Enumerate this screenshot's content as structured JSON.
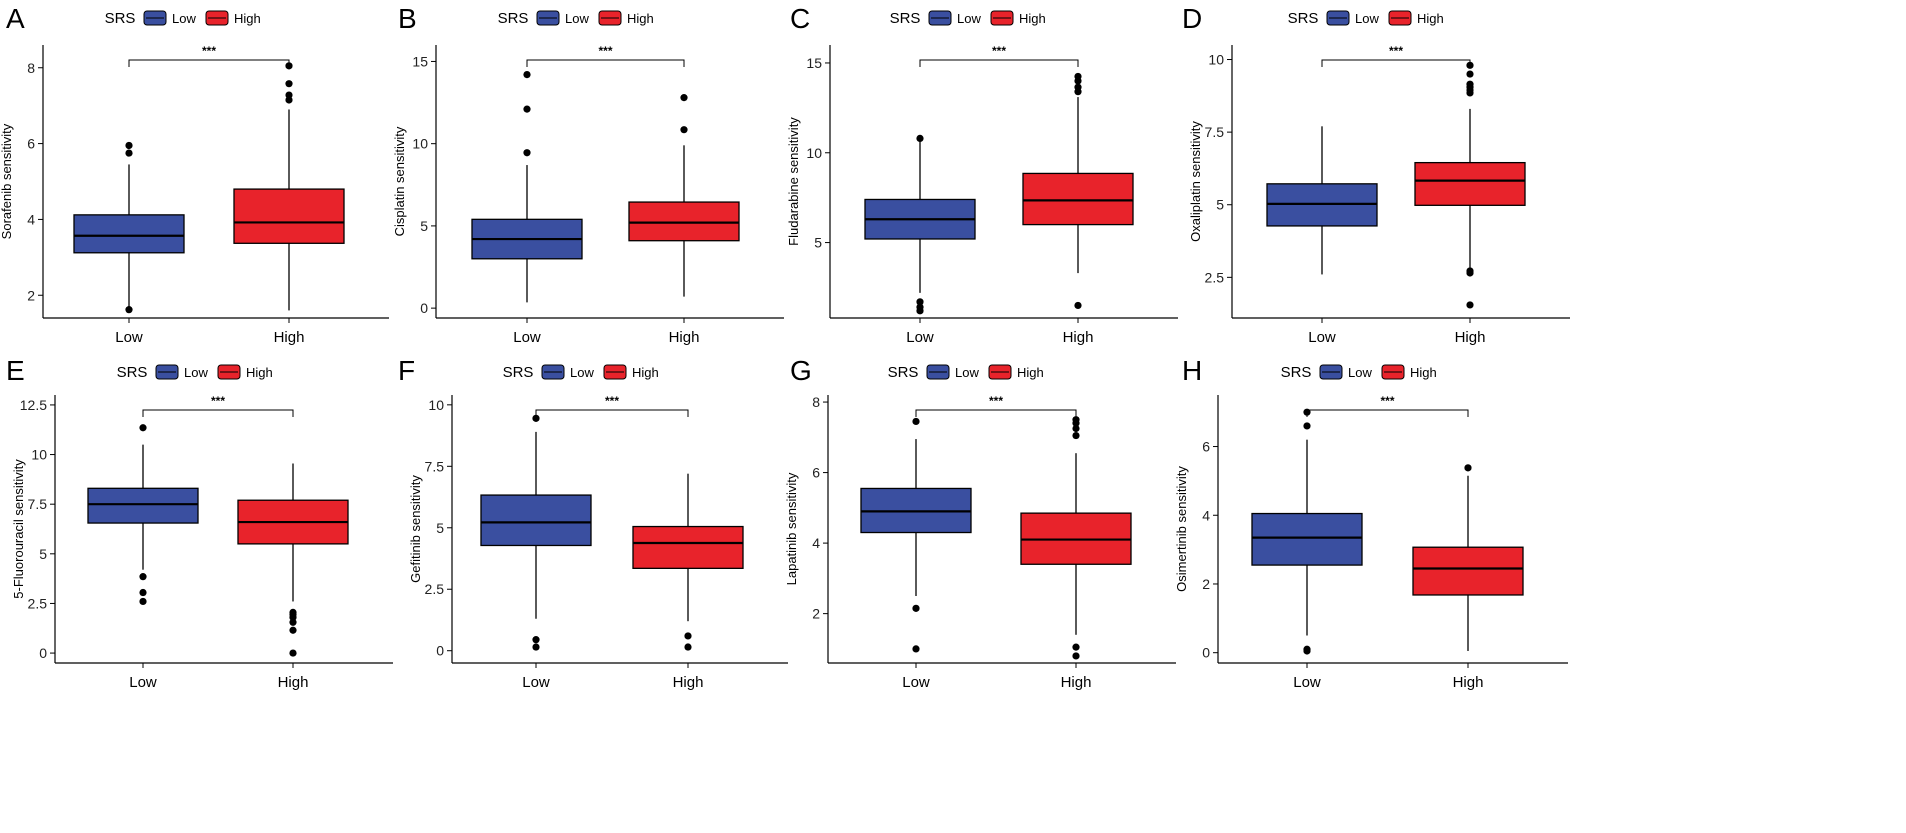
{
  "colors": {
    "low": "#3a4fa0",
    "high": "#e8232b",
    "axis": "#000000",
    "outlier": "#000000"
  },
  "legend": {
    "title": "SRS",
    "low": "Low",
    "high": "High"
  },
  "chart_data": [
    {
      "panel": "A",
      "type": "box",
      "ylabel": "Sorafenib sensitivity",
      "categories": [
        "Low",
        "High"
      ],
      "ylim": [
        1.4,
        8.6
      ],
      "yticks": [
        2,
        4,
        6,
        8
      ],
      "significance": "***",
      "boxes": [
        {
          "group": "Low",
          "whisker_low": 1.65,
          "q1": 3.12,
          "median": 3.57,
          "q3": 4.12,
          "whisker_high": 5.45,
          "outliers": [
            1.62,
            5.75,
            5.95
          ]
        },
        {
          "group": "High",
          "whisker_low": 1.6,
          "q1": 3.37,
          "median": 3.92,
          "q3": 4.8,
          "whisker_high": 6.9,
          "outliers": [
            7.15,
            7.28,
            7.58,
            8.05
          ]
        }
      ]
    },
    {
      "panel": "B",
      "type": "box",
      "ylabel": "Cisplatin sensitivity",
      "categories": [
        "Low",
        "High"
      ],
      "ylim": [
        -0.6,
        16.0
      ],
      "yticks": [
        0,
        5,
        10,
        15
      ],
      "significance": "***",
      "boxes": [
        {
          "group": "Low",
          "whisker_low": 0.35,
          "q1": 3.0,
          "median": 4.2,
          "q3": 5.4,
          "whisker_high": 8.7,
          "outliers": [
            9.45,
            12.1,
            14.2
          ]
        },
        {
          "group": "High",
          "whisker_low": 0.7,
          "q1": 4.1,
          "median": 5.2,
          "q3": 6.45,
          "whisker_high": 9.9,
          "outliers": [
            10.85,
            12.8
          ]
        }
      ]
    },
    {
      "panel": "C",
      "type": "box",
      "ylabel": "Fludarabine sensitivity",
      "categories": [
        "Low",
        "High"
      ],
      "ylim": [
        0.8,
        16.0
      ],
      "yticks": [
        5,
        10,
        15
      ],
      "significance": "***",
      "boxes": [
        {
          "group": "Low",
          "whisker_low": 2.2,
          "q1": 5.2,
          "median": 6.3,
          "q3": 7.4,
          "whisker_high": 10.8,
          "outliers": [
            1.2,
            1.4,
            1.7,
            10.8
          ]
        },
        {
          "group": "High",
          "whisker_low": 3.3,
          "q1": 6.0,
          "median": 7.35,
          "q3": 8.85,
          "whisker_high": 13.1,
          "outliers": [
            1.5,
            13.4,
            13.65,
            14.0,
            14.25
          ]
        }
      ]
    },
    {
      "panel": "D",
      "type": "box",
      "ylabel": "Oxaliplatin sensitivity",
      "categories": [
        "Low",
        "High"
      ],
      "ylim": [
        1.1,
        10.5
      ],
      "yticks": [
        2.5,
        5.0,
        7.5,
        10.0
      ],
      "significance": "***",
      "boxes": [
        {
          "group": "Low",
          "whisker_low": 2.6,
          "q1": 4.27,
          "median": 5.03,
          "q3": 5.72,
          "whisker_high": 7.7,
          "outliers": []
        },
        {
          "group": "High",
          "whisker_low": 2.8,
          "q1": 4.98,
          "median": 5.83,
          "q3": 6.45,
          "whisker_high": 8.3,
          "outliers": [
            1.55,
            2.65,
            2.72,
            8.85,
            8.95,
            9.05,
            9.15,
            9.5,
            9.8
          ]
        }
      ]
    },
    {
      "panel": "E",
      "type": "box",
      "ylabel": "5-Fluorouracil sensitivity",
      "categories": [
        "Low",
        "High"
      ],
      "ylim": [
        -0.5,
        13.0
      ],
      "yticks": [
        0.0,
        2.5,
        5.0,
        7.5,
        10.0,
        12.5
      ],
      "significance": "***",
      "boxes": [
        {
          "group": "Low",
          "whisker_low": 4.2,
          "q1": 6.55,
          "median": 7.5,
          "q3": 8.3,
          "whisker_high": 10.5,
          "outliers": [
            2.6,
            3.05,
            3.85,
            11.35
          ]
        },
        {
          "group": "High",
          "whisker_low": 2.6,
          "q1": 5.5,
          "median": 6.6,
          "q3": 7.7,
          "whisker_high": 9.55,
          "outliers": [
            0.0,
            1.15,
            1.55,
            1.8,
            1.95,
            2.05
          ]
        }
      ]
    },
    {
      "panel": "F",
      "type": "box",
      "ylabel": "Gefitinib sensitivity",
      "categories": [
        "Low",
        "High"
      ],
      "ylim": [
        -0.5,
        10.4
      ],
      "yticks": [
        0.0,
        2.5,
        5.0,
        7.5,
        10.0
      ],
      "significance": "***",
      "boxes": [
        {
          "group": "Low",
          "whisker_low": 1.3,
          "q1": 4.28,
          "median": 5.22,
          "q3": 6.33,
          "whisker_high": 8.9,
          "outliers": [
            0.15,
            0.45,
            9.45
          ]
        },
        {
          "group": "High",
          "whisker_low": 1.2,
          "q1": 3.35,
          "median": 4.38,
          "q3": 5.05,
          "whisker_high": 7.2,
          "outliers": [
            0.15,
            0.6
          ]
        }
      ]
    },
    {
      "panel": "G",
      "type": "box",
      "ylabel": "Lapatinib sensitivity",
      "categories": [
        "Low",
        "High"
      ],
      "ylim": [
        0.6,
        8.2
      ],
      "yticks": [
        2,
        4,
        6,
        8
      ],
      "significance": "***",
      "boxes": [
        {
          "group": "Low",
          "whisker_low": 2.5,
          "q1": 4.3,
          "median": 4.9,
          "q3": 5.55,
          "whisker_high": 6.95,
          "outliers": [
            1.0,
            2.15,
            7.45
          ]
        },
        {
          "group": "High",
          "whisker_low": 1.4,
          "q1": 3.4,
          "median": 4.1,
          "q3": 4.85,
          "whisker_high": 6.55,
          "outliers": [
            0.8,
            1.05,
            7.05,
            7.25,
            7.4,
            7.5
          ]
        }
      ]
    },
    {
      "panel": "H",
      "type": "box",
      "ylabel": "Osimertinib sensitivity",
      "categories": [
        "Low",
        "High"
      ],
      "ylim": [
        -0.3,
        7.5
      ],
      "yticks": [
        0,
        2,
        4,
        6
      ],
      "significance": "***",
      "boxes": [
        {
          "group": "Low",
          "whisker_low": 0.5,
          "q1": 2.55,
          "median": 3.35,
          "q3": 4.05,
          "whisker_high": 6.2,
          "outliers": [
            0.05,
            0.1,
            6.6,
            7.0
          ]
        },
        {
          "group": "High",
          "whisker_low": 0.05,
          "q1": 1.68,
          "median": 2.45,
          "q3": 3.07,
          "whisker_high": 5.15,
          "outliers": [
            5.38
          ]
        }
      ]
    }
  ]
}
